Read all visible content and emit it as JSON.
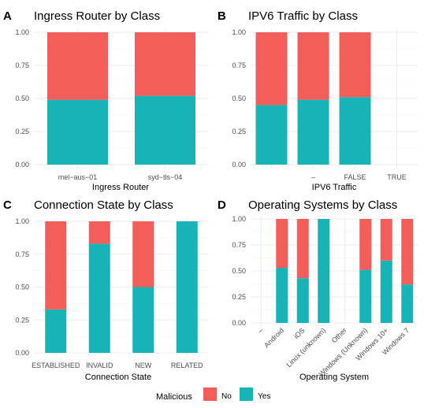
{
  "colors": {
    "No": "#f35e5a",
    "Yes": "#17b3b7"
  },
  "legend": {
    "title": "Malicious",
    "labels": [
      "No",
      "Yes"
    ]
  },
  "chart_data": [
    {
      "panel": "A",
      "type": "bar",
      "stacked": true,
      "title": "Ingress Router by Class",
      "xlabel": "Ingress Router",
      "ylabel": "",
      "ylim": [
        0,
        1
      ],
      "yticks": [
        "0.00",
        "0.25",
        "0.50",
        "0.75",
        "1.00"
      ],
      "categories": [
        "mel−aus−01",
        "syd−tls−04"
      ],
      "series": [
        {
          "name": "Yes",
          "values": [
            0.49,
            0.52
          ]
        },
        {
          "name": "No",
          "values": [
            0.51,
            0.48
          ]
        }
      ]
    },
    {
      "panel": "B",
      "type": "bar",
      "stacked": true,
      "title": "IPV6 Traffic by Class",
      "xlabel": "IPV6 Traffic",
      "ylabel": "",
      "ylim": [
        0,
        1
      ],
      "yticks": [
        "0.00",
        "0.25",
        "0.50",
        "0.75",
        "1.00"
      ],
      "categories": [
        "",
        "–",
        "FALSE",
        "TRUE"
      ],
      "series": [
        {
          "name": "Yes",
          "values": [
            0.45,
            0.49,
            0.51,
            0
          ]
        },
        {
          "name": "No",
          "values": [
            0.55,
            0.51,
            0.49,
            0
          ]
        }
      ]
    },
    {
      "panel": "C",
      "type": "bar",
      "stacked": true,
      "title": "Connection State by Class",
      "xlabel": "Connection State",
      "ylabel": "",
      "ylim": [
        0,
        1
      ],
      "yticks": [
        "0.00",
        "0.25",
        "0.50",
        "0.75",
        "1.00"
      ],
      "categories": [
        "ESTABLISHED",
        "INVALID",
        "NEW",
        "RELATED"
      ],
      "series": [
        {
          "name": "Yes",
          "values": [
            0.33,
            0.83,
            0.5,
            1.0
          ]
        },
        {
          "name": "No",
          "values": [
            0.67,
            0.17,
            0.5,
            0
          ]
        }
      ]
    },
    {
      "panel": "D",
      "type": "bar",
      "stacked": true,
      "title": "Operating Systems by Class",
      "xlabel": "Operating System",
      "ylabel": "",
      "ylim": [
        0,
        1
      ],
      "yticks": [
        "0.00",
        "0.25",
        "0.50",
        "0.75",
        "1.00"
      ],
      "categories": [
        "–",
        "Android",
        "iOS",
        "Linux (unknown)",
        "Other",
        "Windows (Unknown)",
        "Windows 10+",
        "Windows 7"
      ],
      "series": [
        {
          "name": "Yes",
          "values": [
            0,
            0.53,
            0.43,
            1.0,
            0,
            0.51,
            0.6,
            0.37
          ]
        },
        {
          "name": "No",
          "values": [
            0,
            0.47,
            0.57,
            0,
            0,
            0.49,
            0.4,
            0.63
          ]
        }
      ]
    }
  ]
}
